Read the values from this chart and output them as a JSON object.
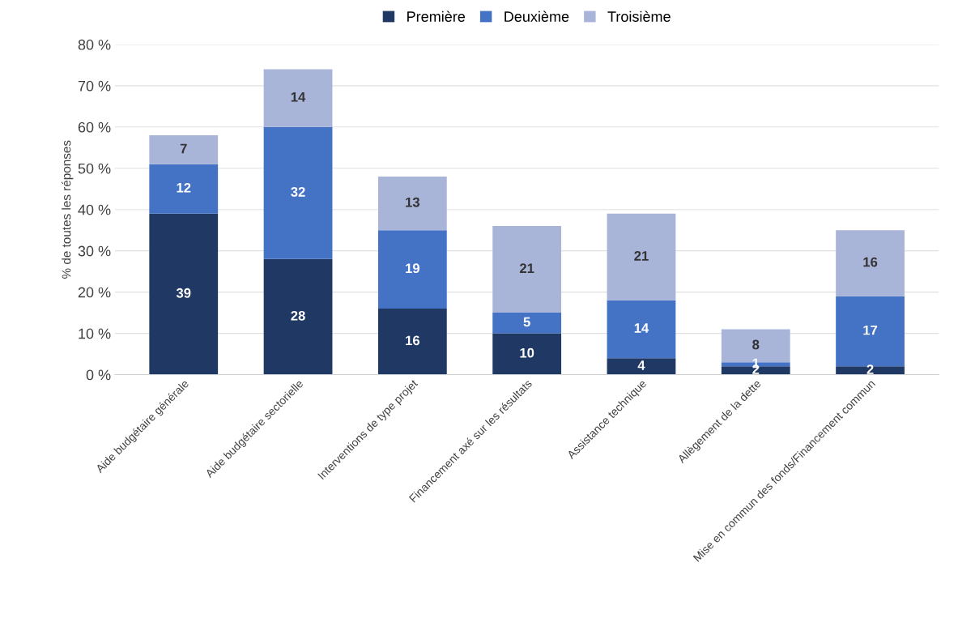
{
  "chart_data": {
    "type": "bar",
    "stacked": true,
    "ylabel": "% de toutes les réponses",
    "categories": [
      "Aide budgétaire générale",
      "Aide budgétaire sectorielle",
      "Interventions de type projet",
      "Financement axé sur les résultats",
      "Assistance technique",
      "Allègement de la dette",
      "Mise en commun des fonds/Financement commun"
    ],
    "series": [
      {
        "name": "Première",
        "color": "#203864",
        "values": [
          39,
          28,
          16,
          10,
          4,
          2,
          2
        ]
      },
      {
        "name": "Deuxième",
        "color": "#4472c4",
        "values": [
          12,
          32,
          19,
          5,
          14,
          1,
          17
        ]
      },
      {
        "name": "Troisième",
        "color": "#a9b4d9",
        "values": [
          7,
          14,
          13,
          21,
          21,
          8,
          16
        ]
      }
    ],
    "ylim": [
      0,
      80
    ],
    "yticks": [
      {
        "value": 0,
        "label": "0 %"
      },
      {
        "value": 10,
        "label": "10 %"
      },
      {
        "value": 20,
        "label": "20 %"
      },
      {
        "value": 30,
        "label": "30 %"
      },
      {
        "value": 40,
        "label": "40 %"
      },
      {
        "value": 50,
        "label": "50 %"
      },
      {
        "value": 60,
        "label": "60 %"
      },
      {
        "value": 70,
        "label": "70 %"
      },
      {
        "value": 80,
        "label": "80 %"
      }
    ],
    "grid": "y",
    "legend": "top",
    "data_labels": true
  }
}
